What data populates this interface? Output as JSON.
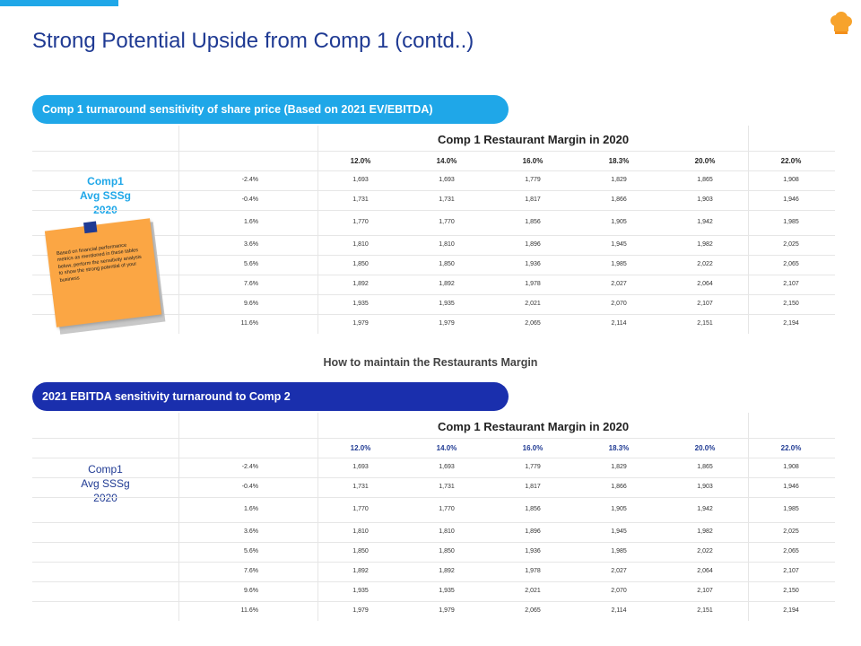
{
  "header": {
    "title": "Strong Potential Upside from Comp 1 (contd..)"
  },
  "section1": {
    "pill_label": "Comp 1 turnaround sensitivity of share price (Based on 2021 EV/EBITDA)",
    "table_heading": "Comp 1 Restaurant Margin in 2020",
    "side_label_line1": "Comp1",
    "side_label_line2": "Avg SSSg",
    "side_label_line3": "2020",
    "sticky_note": "Based on financial performance metrics as mentioned in these tables below, perform the sensitivity analysis to show the strong potential of your business",
    "clip_icon": "binder-clip-icon"
  },
  "subheading": "How to maintain the Restaurants Margin",
  "section2": {
    "pill_label": "2021 EBITDA  sensitivity turnaround to Comp 2",
    "table_heading": "Comp 1 Restaurant Margin in 2020",
    "side_label_line1": "Comp1",
    "side_label_line2": "Avg SSSg",
    "side_label_line3": "2020"
  },
  "table": {
    "columns": [
      "12.0%",
      "14.0%",
      "16.0%",
      "18.3%",
      "20.0%",
      "22.0%"
    ],
    "rows": [
      {
        "label": "-2.4%",
        "values": [
          "1,693",
          "1,693",
          "1,779",
          "1,829",
          "1,865",
          "1,908"
        ]
      },
      {
        "label": "-0.4%",
        "values": [
          "1,731",
          "1,731",
          "1,817",
          "1,866",
          "1,903",
          "1,946"
        ]
      },
      {
        "label": "1.6%",
        "values": [
          "1,770",
          "1,770",
          "1,856",
          "1,905",
          "1,942",
          "1,985"
        ]
      },
      {
        "label": "3.6%",
        "values": [
          "1,810",
          "1,810",
          "1,896",
          "1,945",
          "1,982",
          "2,025"
        ]
      },
      {
        "label": "5.6%",
        "values": [
          "1,850",
          "1,850",
          "1,936",
          "1,985",
          "2,022",
          "2,065"
        ]
      },
      {
        "label": "7.6%",
        "values": [
          "1,892",
          "1,892",
          "1,978",
          "2,027",
          "2,064",
          "2,107"
        ]
      },
      {
        "label": "9.6%",
        "values": [
          "1,935",
          "1,935",
          "2,021",
          "2,070",
          "2,107",
          "2,150"
        ]
      },
      {
        "label": "11.6%",
        "values": [
          "1,979",
          "1,979",
          "2,065",
          "2,114",
          "2,151",
          "2,194"
        ]
      }
    ]
  },
  "colors": {
    "accent_light": "#1fa7e8",
    "accent_dark": "#1a2fad",
    "title": "#1f3a93",
    "sticky": "#fba644"
  },
  "logo_icon": "chef-hat-icon"
}
